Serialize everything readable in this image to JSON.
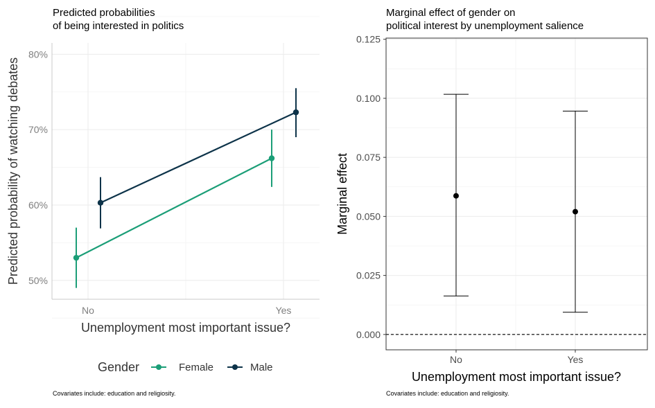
{
  "colors": {
    "female": "#1b9e77",
    "male": "#0d3349",
    "errorbar": "#000000",
    "zero_line": "#000000"
  },
  "chart_data": [
    {
      "type": "line",
      "title_line1": "Predicted probabilities",
      "title_line2": "of being interested in politics",
      "xlabel": "Unemployment most important issue?",
      "ylabel": "Predicted probability of watching debates",
      "categories": [
        "No",
        "Yes"
      ],
      "ylim": [
        0.475,
        0.815
      ],
      "y_ticks": [
        {
          "value": 0.5,
          "label": "50%"
        },
        {
          "value": 0.6,
          "label": "60%"
        },
        {
          "value": 0.7,
          "label": "70%"
        },
        {
          "value": 0.8,
          "label": "80%"
        }
      ],
      "series": [
        {
          "name": "Female",
          "values": [
            0.53,
            0.662
          ],
          "lower": [
            0.49,
            0.624
          ],
          "upper": [
            0.57,
            0.7
          ]
        },
        {
          "name": "Male",
          "values": [
            0.603,
            0.723
          ],
          "lower": [
            0.569,
            0.69
          ],
          "upper": [
            0.637,
            0.755
          ]
        }
      ],
      "legend": {
        "title": "Gender",
        "position": "bottom"
      },
      "grid": true,
      "caption": "Covariates include: education and religiosity."
    },
    {
      "type": "scatter",
      "title_line1": "Marginal effect of gender on",
      "title_line2": "political interest by unemployment salience",
      "xlabel": "Unemployment most important issue?",
      "ylabel": "Marginal effect",
      "categories": [
        "No",
        "Yes"
      ],
      "ylim": [
        -0.0065,
        0.1255
      ],
      "y_ticks": [
        {
          "value": 0.0,
          "label": "0.000"
        },
        {
          "value": 0.025,
          "label": "0.025"
        },
        {
          "value": 0.05,
          "label": "0.050"
        },
        {
          "value": 0.075,
          "label": "0.075"
        },
        {
          "value": 0.1,
          "label": "0.100"
        },
        {
          "value": 0.125,
          "label": "0.125"
        }
      ],
      "values": [
        0.0587,
        0.052
      ],
      "lower": [
        0.0163,
        0.0094
      ],
      "upper": [
        0.1017,
        0.0946
      ],
      "reference_line": 0,
      "grid": true,
      "caption": "Covariates include: education and religiosity."
    }
  ]
}
